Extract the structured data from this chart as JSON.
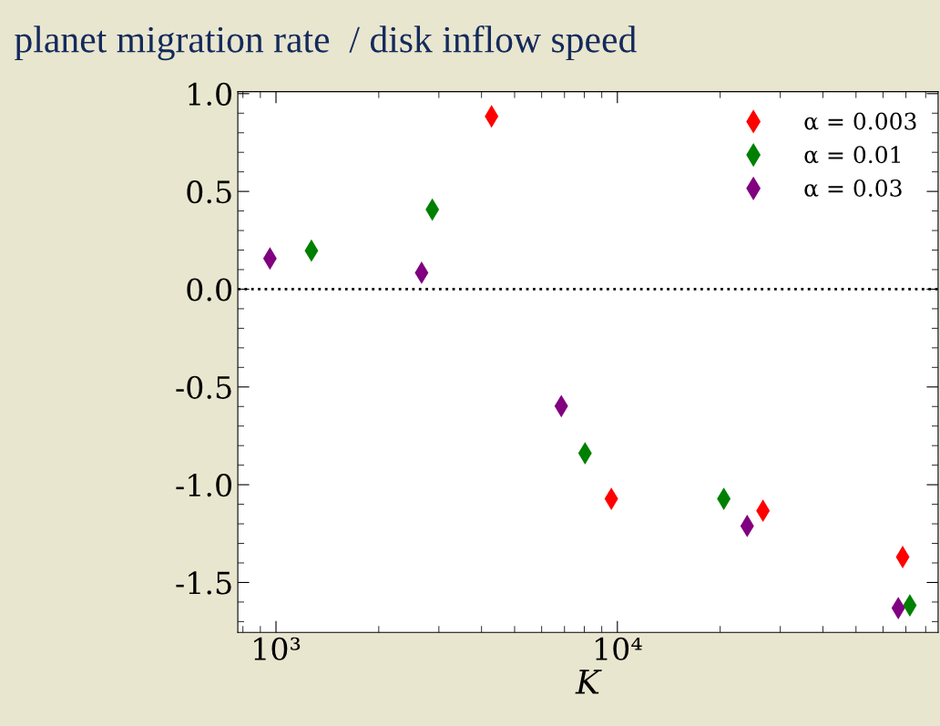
{
  "chart_data": {
    "type": "scatter",
    "title": "planet migration rate  / disk inflow speed",
    "xlabel": "K",
    "log": "x",
    "marker": "diamond",
    "legend": "top right",
    "grid": false,
    "xlim": [
      773,
      87000
    ],
    "xticks": [
      {
        "value": 1000,
        "label": "10³"
      },
      {
        "value": 10000,
        "label": "10⁴"
      }
    ],
    "ylim": [
      -1.755,
      1.01
    ],
    "yticks": [
      -1.5,
      {
        "value": -1,
        "label": "-1.0"
      },
      -0.5,
      {
        "value": 0,
        "label": "0.0"
      },
      0.5,
      {
        "value": 1,
        "label": "1.0"
      }
    ],
    "ref_lines": [
      {
        "axis": "y",
        "value": 0,
        "color": "#000000",
        "line_style": "dotted"
      }
    ],
    "series": [
      {
        "name": "α = 0.003",
        "color": "#ff0000",
        "x": [
          4280,
          9600,
          26700,
          68500
        ],
        "values": [
          0.884,
          -1.072,
          -1.133,
          -1.37
        ]
      },
      {
        "name": "α = 0.01",
        "color": "#008000",
        "x": [
          1270,
          2870,
          8040,
          20500,
          71900
        ],
        "values": [
          0.197,
          0.407,
          -0.839,
          -1.072,
          -1.617
        ]
      },
      {
        "name": "α = 0.03",
        "color": "#800080",
        "x": [
          960,
          2670,
          6850,
          24000,
          66500
        ],
        "values": [
          0.157,
          0.084,
          -0.598,
          -1.211,
          -1.631
        ]
      }
    ]
  }
}
